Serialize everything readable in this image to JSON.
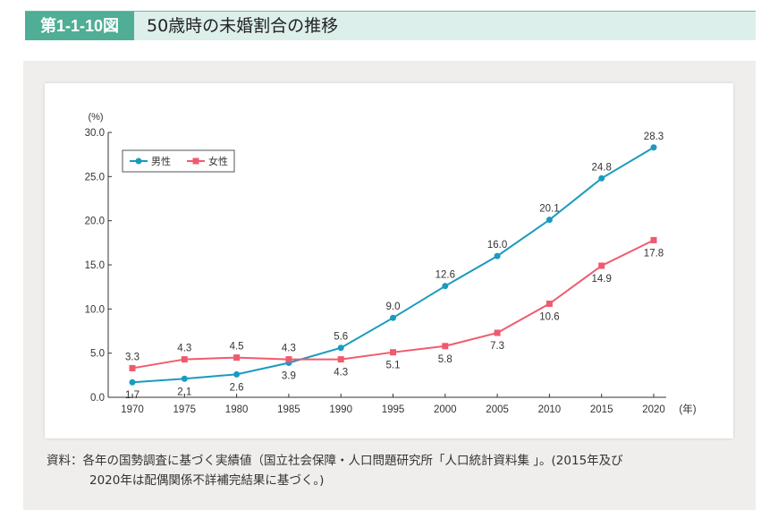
{
  "header": {
    "figure_number": "第1-1-10図",
    "title": "50歳時の未婚割合の推移"
  },
  "source": {
    "line1": "資料：各年の国勢調査に基づく実績値（国立社会保障・人口問題研究所「人口統計資料集 」。(2015年及び",
    "line2": "2020年は配偶関係不詳補完結果に基づく。)"
  },
  "chart_data": {
    "type": "line",
    "xlabel": "(年)",
    "ylabel": "(%)",
    "ylim": [
      0,
      30
    ],
    "yticks": [
      "0.0",
      "5.0",
      "10.0",
      "15.0",
      "20.0",
      "25.0",
      "30.0"
    ],
    "categories": [
      "1970",
      "1975",
      "1980",
      "1985",
      "1990",
      "1995",
      "2000",
      "2005",
      "2010",
      "2015",
      "2020"
    ],
    "legend": "top-left",
    "grid": false,
    "series": [
      {
        "name": "男性",
        "color": "#1a9bbf",
        "marker": "circle",
        "values": [
          1.7,
          2.1,
          2.6,
          3.9,
          5.6,
          9.0,
          12.6,
          16.0,
          20.1,
          24.8,
          28.3
        ],
        "labels": [
          "1.7",
          "2.1",
          "2.6",
          "3.9",
          "5.6",
          "9.0",
          "12.6",
          "16.0",
          "20.1",
          "24.8",
          "28.3"
        ]
      },
      {
        "name": "女性",
        "color": "#f05a6e",
        "marker": "square",
        "values": [
          3.3,
          4.3,
          4.5,
          4.3,
          4.3,
          5.1,
          5.8,
          7.3,
          10.6,
          14.9,
          17.8
        ],
        "labels": [
          "3.3",
          "4.3",
          "4.5",
          "4.3",
          "4.3",
          "5.1",
          "5.8",
          "7.3",
          "10.6",
          "14.9",
          "17.8"
        ]
      }
    ]
  }
}
